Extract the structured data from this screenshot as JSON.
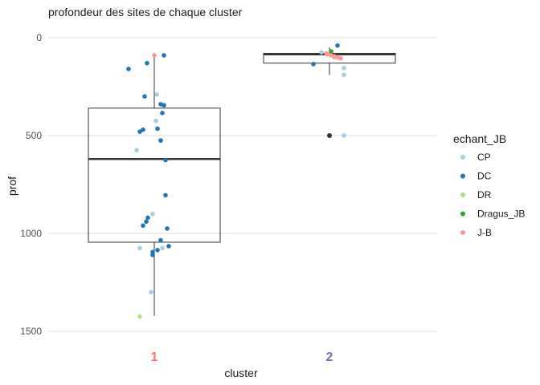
{
  "chart_data": {
    "type": "boxplot",
    "title": "profondeur des sites de chaque cluster",
    "xlabel": "cluster",
    "ylabel": "prof",
    "y_reversed": true,
    "ylim": [
      0,
      1500
    ],
    "yticks": [
      0,
      500,
      1000,
      1500
    ],
    "grid": true,
    "legend_position": "right",
    "legend_title": "echant_JB",
    "categories": [
      "1",
      "2"
    ],
    "category_colors": {
      "1": "#F8766D",
      "2": "#7570B3"
    },
    "boxes": [
      {
        "category": "1",
        "q1": 360,
        "median": 620,
        "q3": 1045,
        "whisker_low": 90,
        "whisker_high": 1420
      },
      {
        "category": "2",
        "q1": 80,
        "median": 85,
        "q3": 130,
        "whisker_low": 50,
        "whisker_high": 190,
        "outliers": [
          500
        ]
      }
    ],
    "series": [
      {
        "name": "CP",
        "color": "#A6CEE3",
        "points": [
          {
            "x": "1",
            "jitter": -0.22,
            "y": 575
          },
          {
            "x": "1",
            "jitter": 0.02,
            "y": 425
          },
          {
            "x": "1",
            "jitter": 0.03,
            "y": 290
          },
          {
            "x": "1",
            "jitter": 0.1,
            "y": 1075
          },
          {
            "x": "1",
            "jitter": -0.18,
            "y": 1075
          },
          {
            "x": "1",
            "jitter": -0.02,
            "y": 900
          },
          {
            "x": "1",
            "jitter": -0.04,
            "y": 1300
          },
          {
            "x": "2",
            "jitter": -0.1,
            "y": 75
          },
          {
            "x": "2",
            "jitter": 0.18,
            "y": 190
          },
          {
            "x": "2",
            "jitter": 0.18,
            "y": 155
          },
          {
            "x": "2",
            "jitter": 0.06,
            "y": 100
          },
          {
            "x": "2",
            "jitter": 0.18,
            "y": 500
          }
        ]
      },
      {
        "name": "DC",
        "color": "#1F78B4",
        "points": [
          {
            "x": "1",
            "jitter": -0.32,
            "y": 160
          },
          {
            "x": "1",
            "jitter": -0.09,
            "y": 130
          },
          {
            "x": "1",
            "jitter": 0.12,
            "y": 90
          },
          {
            "x": "1",
            "jitter": -0.12,
            "y": 300
          },
          {
            "x": "1",
            "jitter": 0.08,
            "y": 340
          },
          {
            "x": "1",
            "jitter": 0.12,
            "y": 345
          },
          {
            "x": "1",
            "jitter": 0.1,
            "y": 385
          },
          {
            "x": "1",
            "jitter": -0.14,
            "y": 470
          },
          {
            "x": "1",
            "jitter": -0.18,
            "y": 480
          },
          {
            "x": "1",
            "jitter": 0.04,
            "y": 465
          },
          {
            "x": "1",
            "jitter": 0.08,
            "y": 525
          },
          {
            "x": "1",
            "jitter": 0.14,
            "y": 625
          },
          {
            "x": "1",
            "jitter": 0.14,
            "y": 805
          },
          {
            "x": "1",
            "jitter": -0.08,
            "y": 920
          },
          {
            "x": "1",
            "jitter": -0.1,
            "y": 940
          },
          {
            "x": "1",
            "jitter": -0.14,
            "y": 960
          },
          {
            "x": "1",
            "jitter": 0.16,
            "y": 975
          },
          {
            "x": "1",
            "jitter": 0.08,
            "y": 1035
          },
          {
            "x": "1",
            "jitter": 0.18,
            "y": 1065
          },
          {
            "x": "1",
            "jitter": 0.04,
            "y": 1085
          },
          {
            "x": "1",
            "jitter": -0.02,
            "y": 1095
          },
          {
            "x": "1",
            "jitter": -0.02,
            "y": 1110
          },
          {
            "x": "2",
            "jitter": -0.2,
            "y": 135
          },
          {
            "x": "2",
            "jitter": 0.1,
            "y": 40
          }
        ]
      },
      {
        "name": "DR",
        "color": "#B2DF8A",
        "points": [
          {
            "x": "1",
            "jitter": -0.18,
            "y": 1425
          }
        ]
      },
      {
        "name": "Dragus_JB",
        "label": "Dragus_JB",
        "color": "#33A02C",
        "points": [
          {
            "x": "2",
            "jitter": 0.02,
            "y": 70
          }
        ]
      },
      {
        "name": "J-B",
        "color": "#FB9A99",
        "points": [
          {
            "x": "1",
            "jitter": 0.0,
            "y": 90
          },
          {
            "x": "2",
            "jitter": -0.04,
            "y": 80
          },
          {
            "x": "2",
            "jitter": -0.02,
            "y": 85
          },
          {
            "x": "2",
            "jitter": 0.02,
            "y": 90
          },
          {
            "x": "2",
            "jitter": 0.06,
            "y": 95
          },
          {
            "x": "2",
            "jitter": 0.1,
            "y": 100
          },
          {
            "x": "2",
            "jitter": 0.14,
            "y": 105
          }
        ]
      }
    ]
  }
}
